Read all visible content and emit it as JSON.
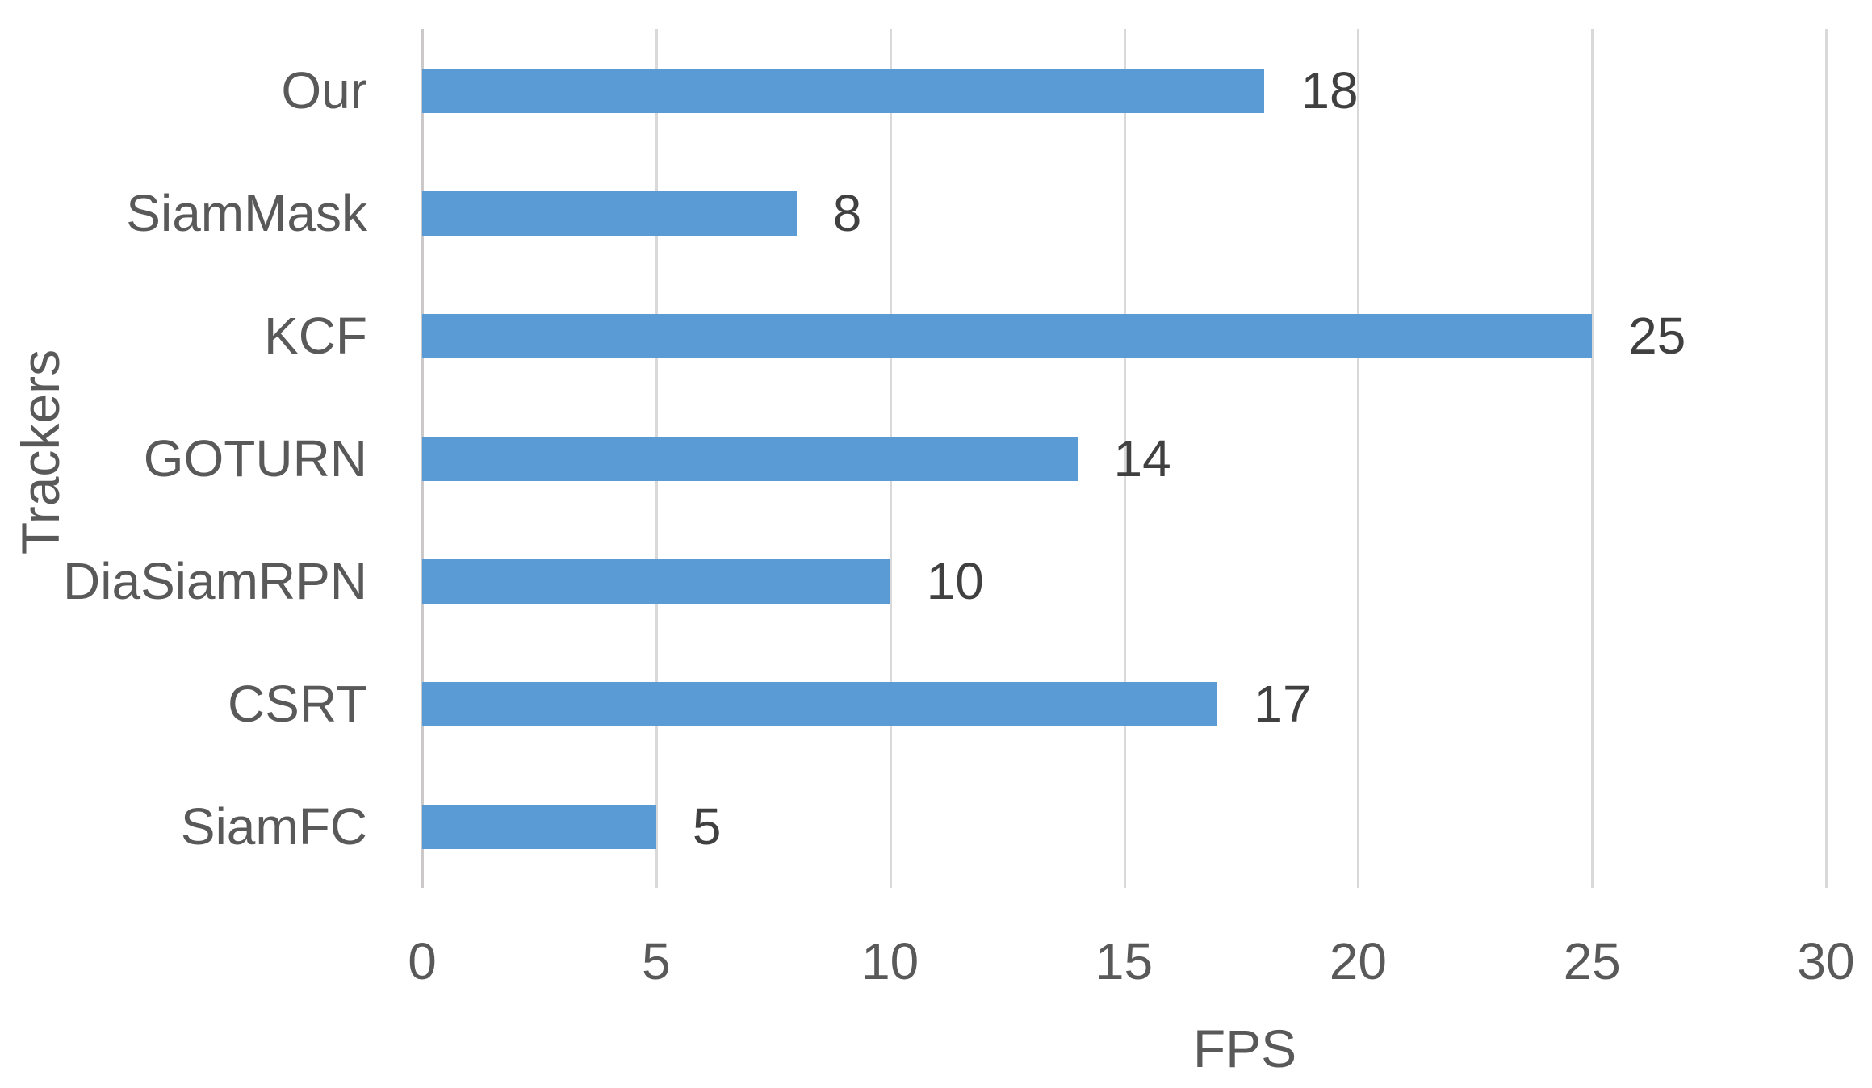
{
  "chart_data": {
    "type": "bar",
    "orientation": "horizontal",
    "title": "",
    "categories": [
      "Our",
      "SiamMask",
      "KCF",
      "GOTURN",
      "DiaSiamRPN",
      "CSRT",
      "SiamFC"
    ],
    "values": [
      18,
      8,
      25,
      14,
      10,
      17,
      5
    ],
    "xlabel": "FPS",
    "ylabel": "Trackers",
    "xlim": [
      0,
      30
    ],
    "xticks": [
      0,
      5,
      10,
      15,
      20,
      25,
      30
    ],
    "grid": "vertical-only",
    "legend": "none",
    "data_labels": "outside-end",
    "colors": {
      "bar": "#5B9BD5",
      "gridline": "#D9D9D9",
      "axis_line": "#CBC9C9",
      "tick_label": "#595959",
      "category_label": "#595959",
      "data_label": "#404040",
      "background": "#FFFFFF"
    }
  }
}
